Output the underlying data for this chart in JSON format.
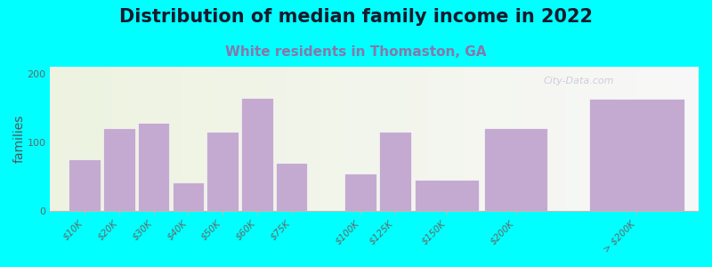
{
  "title": "Distribution of median family income in 2022",
  "subtitle": "White residents in Thomaston, GA",
  "ylabel": "families",
  "categories": [
    "$10K",
    "$20K",
    "$30K",
    "$40K",
    "$50K",
    "$60K",
    "$75K",
    "$100K",
    "$125K",
    "$150K",
    "$200K",
    "> $200K"
  ],
  "values": [
    75,
    120,
    128,
    42,
    115,
    165,
    70,
    55,
    115,
    45,
    120,
    163
  ],
  "bar_color": "#c4aad0",
  "bg_color": "#00ffff",
  "grad_top": "#edf3e0",
  "grad_bottom": "#f8f8f8",
  "title_fontsize": 15,
  "subtitle_fontsize": 11,
  "ylabel_fontsize": 10,
  "tick_fontsize": 7.5,
  "ylim": [
    0,
    210
  ],
  "yticks": [
    0,
    100,
    200
  ],
  "subtitle_color": "#8877aa",
  "watermark": "City-Data.com",
  "bar_positions": [
    0,
    1,
    2,
    3,
    4,
    5,
    6,
    8,
    9,
    10,
    12,
    15
  ],
  "bar_widths": [
    1,
    1,
    1,
    1,
    1,
    1,
    1,
    1,
    1,
    2,
    2,
    3
  ]
}
